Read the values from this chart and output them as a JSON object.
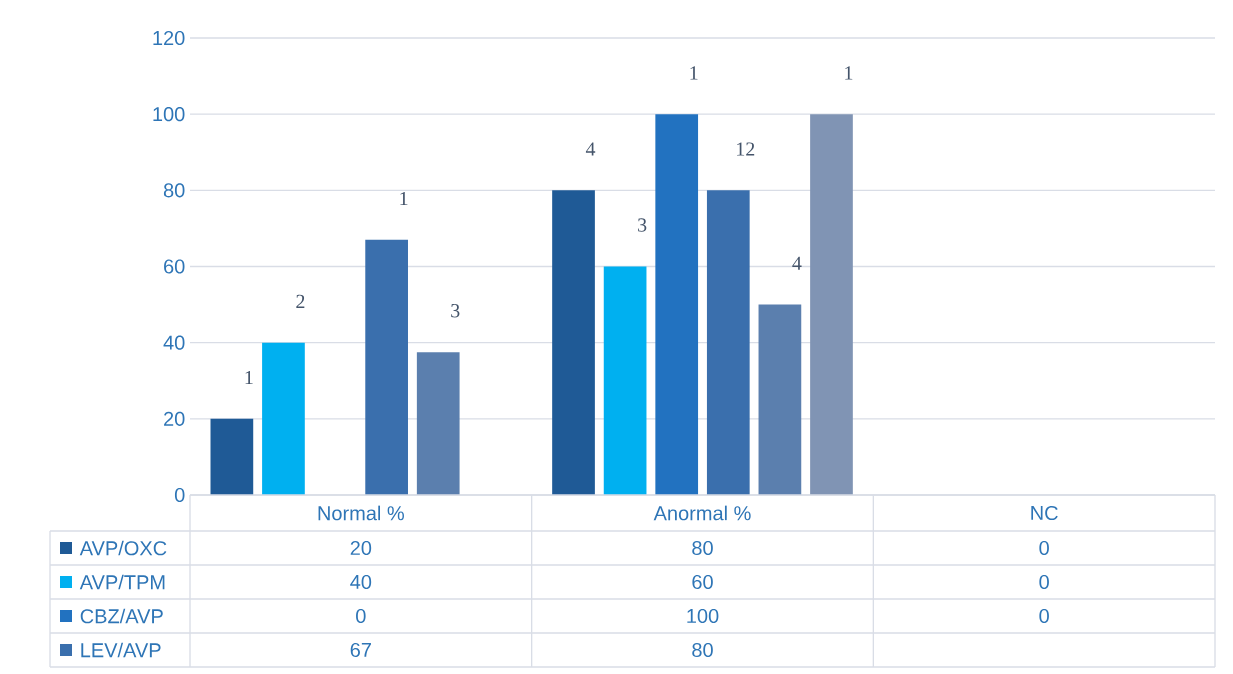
{
  "chart_data": {
    "type": "bar",
    "categories": [
      "Normal %",
      "Anormal %",
      "NC"
    ],
    "series": [
      {
        "name": "AVP/OXC",
        "color": "#1f5a96",
        "values": [
          20,
          80,
          0
        ],
        "value_labels": [
          "20",
          "80",
          "0"
        ]
      },
      {
        "name": "AVP/TPM",
        "color": "#00b0f0",
        "values": [
          40,
          60,
          0
        ],
        "value_labels": [
          "40",
          "60",
          "0"
        ]
      },
      {
        "name": "CBZ/AVP",
        "color": "#2272c0",
        "values": [
          0,
          100,
          0
        ],
        "value_labels": [
          "0",
          "100",
          "0"
        ]
      },
      {
        "name": "LEV/AVP",
        "color": "#3a6fad",
        "values": [
          67,
          80,
          null
        ],
        "value_labels": [
          "67",
          "80",
          null
        ]
      },
      {
        "color": "#5b7fae",
        "values": [
          37.5,
          50,
          null
        ]
      },
      {
        "color": "#8094b4",
        "values": [
          0,
          100,
          null
        ]
      }
    ],
    "annotations": [
      "1",
      "4",
      "2",
      "3",
      "1",
      "1",
      "12",
      "3",
      "4",
      "1"
    ],
    "ylim": [
      0,
      120
    ],
    "yticks": [
      0,
      20,
      40,
      60,
      80,
      100,
      120
    ],
    "grid": "y",
    "legend": "bottom left"
  }
}
